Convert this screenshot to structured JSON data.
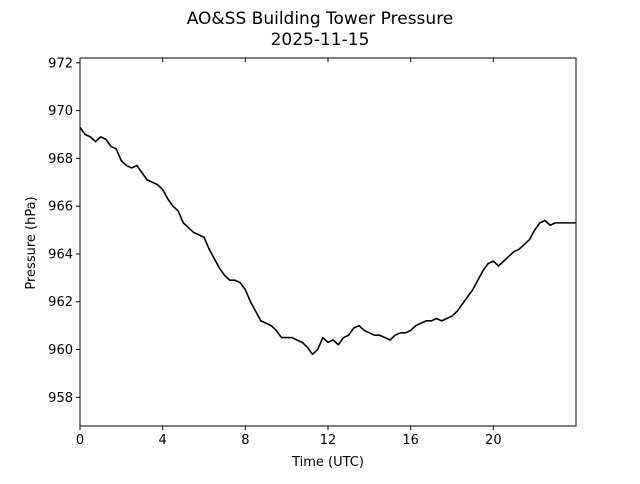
{
  "chart_data": {
    "type": "line",
    "title": "AO&SS Building Tower Pressure",
    "subtitle": "2025-11-15",
    "xlabel": "Time (UTC)",
    "ylabel": "Pressure (hPa)",
    "xlim": [
      0,
      24
    ],
    "ylim": [
      956.8,
      972.2
    ],
    "x_ticks": [
      0,
      4,
      8,
      12,
      16,
      20
    ],
    "x_tick_labels": [
      "0",
      "4",
      "8",
      "12",
      "16",
      "20"
    ],
    "y_ticks": [
      958,
      960,
      962,
      964,
      966,
      968,
      970,
      972
    ],
    "y_tick_labels": [
      "958",
      "960",
      "962",
      "964",
      "966",
      "968",
      "970",
      "972"
    ],
    "grid": false,
    "legend": "none",
    "series": [
      {
        "color": "#000000",
        "x": [
          0,
          0.25,
          0.5,
          0.75,
          1.0,
          1.25,
          1.5,
          1.75,
          2.0,
          2.25,
          2.5,
          2.75,
          3.0,
          3.25,
          3.5,
          3.75,
          4.0,
          4.25,
          4.5,
          4.75,
          5.0,
          5.25,
          5.5,
          5.75,
          6.0,
          6.25,
          6.5,
          6.75,
          7.0,
          7.25,
          7.5,
          7.75,
          8.0,
          8.25,
          8.5,
          8.75,
          9.0,
          9.25,
          9.5,
          9.75,
          10.0,
          10.25,
          10.5,
          10.75,
          11.0,
          11.25,
          11.5,
          11.75,
          12.0,
          12.25,
          12.5,
          12.75,
          13.0,
          13.25,
          13.5,
          13.75,
          14.0,
          14.25,
          14.5,
          14.75,
          15.0,
          15.25,
          15.5,
          15.75,
          16.0,
          16.25,
          16.5,
          16.75,
          17.0,
          17.25,
          17.5,
          17.75,
          18.0,
          18.25,
          18.5,
          18.75,
          19.0,
          19.25,
          19.5,
          19.75,
          20.0,
          20.25,
          20.5,
          20.75,
          21.0,
          21.25,
          21.5,
          21.75,
          22.0,
          22.25,
          22.5,
          22.75,
          23.0,
          23.25,
          23.5,
          23.75,
          24.0
        ],
        "values": [
          969.3,
          969.0,
          968.9,
          968.7,
          968.9,
          968.8,
          968.5,
          968.4,
          967.9,
          967.7,
          967.6,
          967.7,
          967.4,
          967.1,
          967.0,
          966.9,
          966.7,
          966.3,
          966.0,
          965.8,
          965.3,
          965.1,
          964.9,
          964.8,
          964.7,
          964.2,
          963.8,
          963.4,
          963.1,
          962.9,
          962.9,
          962.8,
          962.5,
          962.0,
          961.6,
          961.2,
          961.1,
          961.0,
          960.8,
          960.5,
          960.5,
          960.5,
          960.4,
          960.3,
          960.1,
          959.8,
          960.0,
          960.5,
          960.3,
          960.4,
          960.2,
          960.5,
          960.6,
          960.9,
          961.0,
          960.8,
          960.7,
          960.6,
          960.6,
          960.5,
          960.4,
          960.6,
          960.7,
          960.7,
          960.8,
          961.0,
          961.1,
          961.2,
          961.2,
          961.3,
          961.2,
          961.3,
          961.4,
          961.6,
          961.9,
          962.2,
          962.5,
          962.9,
          963.3,
          963.6,
          963.7,
          963.5,
          963.7,
          963.9,
          964.1,
          964.2,
          964.4,
          964.6,
          965.0,
          965.3,
          965.4,
          965.2,
          965.3,
          965.3,
          965.3,
          965.3,
          965.3
        ]
      }
    ]
  }
}
